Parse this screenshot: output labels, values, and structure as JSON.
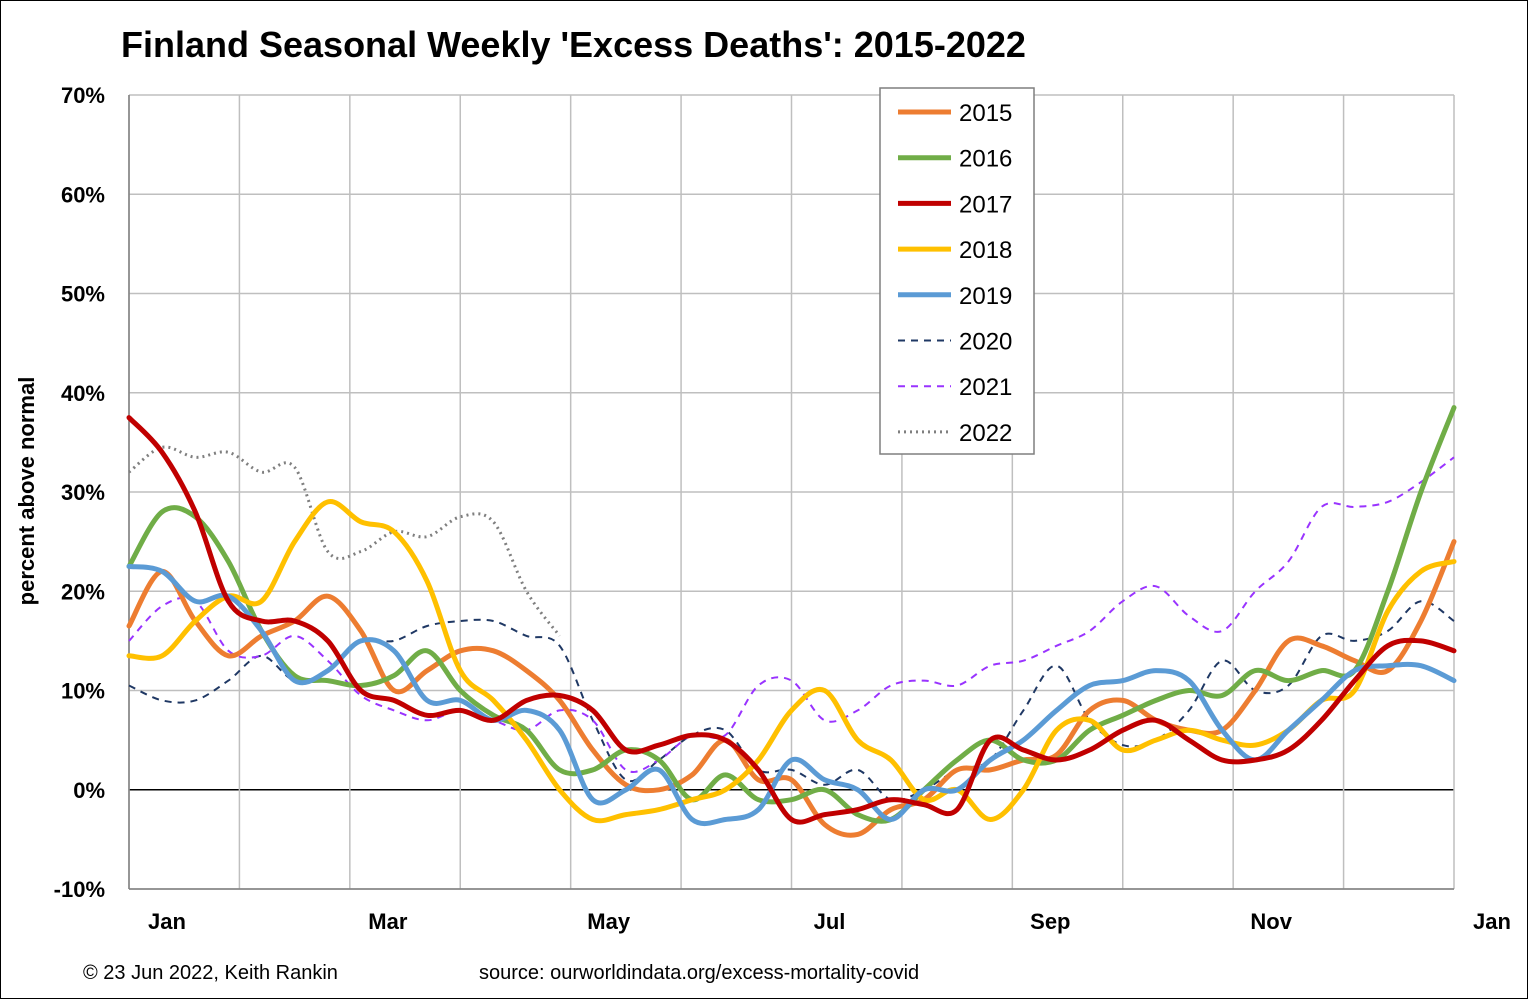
{
  "chart_data": {
    "type": "line",
    "title": "Finland Seasonal Weekly 'Excess Deaths': 2015-2022",
    "ylabel": "percent above normal",
    "xlabel": "",
    "ylim": [
      -10,
      70
    ],
    "yticks": [
      -10,
      0,
      10,
      20,
      30,
      40,
      50,
      60,
      70
    ],
    "ytick_labels": [
      "-10%",
      "0%",
      "10%",
      "20%",
      "30%",
      "40%",
      "50%",
      "60%",
      "70%"
    ],
    "xlim": [
      0,
      12
    ],
    "xtick_labels": [
      "Jan",
      "Mar",
      "May",
      "Jul",
      "Sep",
      "Nov",
      "Jan"
    ],
    "xtick_positions": [
      0,
      2,
      4,
      6,
      8,
      10,
      12
    ],
    "x_unit": "month of year (0 = start of Jan, 12 = start of next Jan)",
    "grid": true,
    "legend_position": "top-center",
    "series": [
      {
        "name": "2015",
        "color": "#ED7D31",
        "style": "solid",
        "x": [
          0.0,
          0.3,
          0.6,
          0.9,
          1.2,
          1.5,
          1.8,
          2.1,
          2.4,
          2.7,
          3.0,
          3.3,
          3.6,
          3.9,
          4.2,
          4.5,
          4.8,
          5.1,
          5.4,
          5.7,
          6.0,
          6.3,
          6.6,
          6.9,
          7.2,
          7.5,
          7.8,
          8.1,
          8.4,
          8.7,
          9.0,
          9.3,
          9.6,
          9.9,
          10.2,
          10.5,
          10.8,
          11.1,
          11.4,
          11.7,
          12.0
        ],
        "y": [
          16.5,
          22,
          17,
          13.5,
          15.5,
          17,
          19.5,
          16,
          10,
          12,
          14,
          14,
          12,
          9,
          4,
          0.5,
          0,
          1.5,
          5,
          1,
          1,
          -3.5,
          -4.5,
          -2,
          -1,
          2,
          2,
          3,
          3.5,
          8,
          9,
          7,
          6,
          6,
          10,
          15,
          14.5,
          13,
          12,
          17,
          25
        ]
      },
      {
        "name": "2016",
        "color": "#70AD47",
        "style": "solid",
        "x": [
          0.0,
          0.3,
          0.6,
          0.9,
          1.2,
          1.5,
          1.8,
          2.1,
          2.4,
          2.7,
          3.0,
          3.3,
          3.6,
          3.9,
          4.2,
          4.5,
          4.8,
          5.1,
          5.4,
          5.7,
          6.0,
          6.3,
          6.6,
          6.9,
          7.2,
          7.5,
          7.8,
          8.1,
          8.4,
          8.7,
          9.0,
          9.3,
          9.6,
          9.9,
          10.2,
          10.5,
          10.8,
          11.1,
          11.4,
          11.7,
          12.0
        ],
        "y": [
          22.5,
          28,
          27.5,
          23,
          16,
          11.5,
          11,
          10.5,
          11.5,
          14,
          10,
          7.5,
          6,
          2,
          2,
          4,
          3,
          -1,
          1.5,
          -1,
          -1,
          0,
          -2.5,
          -3,
          0,
          3,
          5,
          3,
          3,
          6,
          7.5,
          9,
          10,
          9.5,
          12,
          11,
          12,
          12,
          20,
          30,
          38.5
        ]
      },
      {
        "name": "2017",
        "color": "#C00000",
        "style": "solid",
        "x": [
          0.0,
          0.3,
          0.6,
          0.9,
          1.2,
          1.5,
          1.8,
          2.1,
          2.4,
          2.7,
          3.0,
          3.3,
          3.6,
          3.9,
          4.2,
          4.5,
          4.8,
          5.1,
          5.4,
          5.7,
          6.0,
          6.3,
          6.6,
          6.9,
          7.2,
          7.5,
          7.8,
          8.1,
          8.4,
          8.7,
          9.0,
          9.3,
          9.6,
          9.9,
          10.2,
          10.5,
          10.8,
          11.1,
          11.4,
          11.7,
          12.0
        ],
        "y": [
          37.5,
          34,
          28,
          19,
          17,
          17,
          15,
          10,
          9,
          7.5,
          8,
          7,
          9,
          9.5,
          8,
          4,
          4.5,
          5.5,
          5,
          2,
          -3,
          -2.5,
          -2,
          -1,
          -1.5,
          -2,
          5,
          4,
          3,
          4,
          6,
          7,
          5,
          3,
          3,
          4,
          7,
          11,
          14.5,
          15,
          14
        ]
      },
      {
        "name": "2018",
        "color": "#FFC000",
        "style": "solid",
        "x": [
          0.0,
          0.3,
          0.6,
          0.9,
          1.2,
          1.5,
          1.8,
          2.1,
          2.4,
          2.7,
          3.0,
          3.3,
          3.6,
          3.9,
          4.2,
          4.5,
          4.8,
          5.1,
          5.4,
          5.7,
          6.0,
          6.3,
          6.6,
          6.9,
          7.2,
          7.5,
          7.8,
          8.1,
          8.4,
          8.7,
          9.0,
          9.3,
          9.6,
          9.9,
          10.2,
          10.5,
          10.8,
          11.1,
          11.4,
          11.7,
          12.0
        ],
        "y": [
          13.5,
          13.5,
          17,
          19.5,
          19,
          25,
          29,
          27,
          26,
          21,
          12,
          9,
          5,
          0,
          -3,
          -2.5,
          -2,
          -1,
          0,
          3,
          8,
          10,
          5,
          3,
          -1,
          0,
          -3,
          0,
          6,
          7,
          4,
          5,
          6,
          5,
          4.5,
          6,
          9,
          10,
          18,
          22,
          23
        ]
      },
      {
        "name": "2019",
        "color": "#5B9BD5",
        "style": "solid",
        "x": [
          0.0,
          0.3,
          0.6,
          0.9,
          1.2,
          1.5,
          1.8,
          2.1,
          2.4,
          2.7,
          3.0,
          3.3,
          3.6,
          3.9,
          4.2,
          4.5,
          4.8,
          5.1,
          5.4,
          5.7,
          6.0,
          6.3,
          6.6,
          6.9,
          7.2,
          7.5,
          7.8,
          8.1,
          8.4,
          8.7,
          9.0,
          9.3,
          9.6,
          9.9,
          10.2,
          10.5,
          10.8,
          11.1,
          11.4,
          11.7,
          12.0
        ],
        "y": [
          22.5,
          22,
          19,
          19.5,
          16,
          11,
          12,
          15,
          14,
          9,
          9,
          7,
          8,
          6,
          -1,
          0,
          2,
          -3,
          -3,
          -2,
          3,
          1,
          0,
          -3,
          0,
          0,
          3,
          5,
          8,
          10.5,
          11,
          12,
          11,
          6,
          3,
          6,
          9,
          12,
          12.5,
          12.5,
          11
        ]
      },
      {
        "name": "2020",
        "color": "#1F3864",
        "style": "dashed",
        "x": [
          0.0,
          0.3,
          0.6,
          0.9,
          1.2,
          1.5,
          1.8,
          2.1,
          2.4,
          2.7,
          3.0,
          3.3,
          3.6,
          3.9,
          4.2,
          4.5,
          4.8,
          5.1,
          5.4,
          5.7,
          6.0,
          6.3,
          6.6,
          6.9,
          7.2,
          7.5,
          7.8,
          8.1,
          8.4,
          8.7,
          9.0,
          9.3,
          9.6,
          9.9,
          10.2,
          10.5,
          10.8,
          11.1,
          11.4,
          11.7,
          12.0
        ],
        "y": [
          10.5,
          9,
          9,
          11,
          13.5,
          11,
          12,
          15,
          15,
          16.5,
          17,
          17,
          15.5,
          14.5,
          7,
          1,
          3,
          5.5,
          6,
          2,
          2,
          0.5,
          2,
          -1,
          0,
          2,
          3,
          8,
          12.5,
          7,
          4.5,
          5,
          8,
          13,
          10,
          10.5,
          15.5,
          15,
          16,
          19,
          17
        ]
      },
      {
        "name": "2021",
        "color": "#9933FF",
        "style": "dashed",
        "x": [
          0.0,
          0.3,
          0.6,
          0.9,
          1.2,
          1.5,
          1.8,
          2.1,
          2.4,
          2.7,
          3.0,
          3.3,
          3.6,
          3.9,
          4.2,
          4.5,
          4.8,
          5.1,
          5.4,
          5.7,
          6.0,
          6.3,
          6.6,
          6.9,
          7.2,
          7.5,
          7.8,
          8.1,
          8.4,
          8.7,
          9.0,
          9.3,
          9.6,
          9.9,
          10.2,
          10.5,
          10.8,
          11.1,
          11.4,
          11.7,
          12.0
        ],
        "y": [
          15,
          18.5,
          19,
          14,
          13.5,
          15.5,
          13,
          9.5,
          8,
          7,
          8,
          7,
          6,
          8,
          7,
          2,
          3,
          5.5,
          5.5,
          10.5,
          11,
          7,
          8,
          10.5,
          11,
          10.5,
          12.5,
          13,
          14.5,
          16,
          19,
          20.5,
          17.5,
          16,
          20,
          23,
          28.5,
          28.5,
          29,
          31,
          33.5
        ]
      },
      {
        "name": "2022",
        "color": "#7F7F7F",
        "style": "dotted",
        "x": [
          0.0,
          0.3,
          0.6,
          0.9,
          1.2,
          1.5,
          1.8,
          2.1,
          2.4,
          2.7,
          3.0,
          3.3,
          3.6,
          3.9
        ],
        "y": [
          32,
          34.5,
          33.5,
          34,
          32,
          32.5,
          24,
          24,
          26,
          25.5,
          27.5,
          27,
          20,
          15.5
        ]
      }
    ]
  },
  "footer": {
    "copyright": "© 23 Jun 2022, Keith Rankin",
    "source": "source: ourworldindata.org/excess-mortality-covid"
  }
}
